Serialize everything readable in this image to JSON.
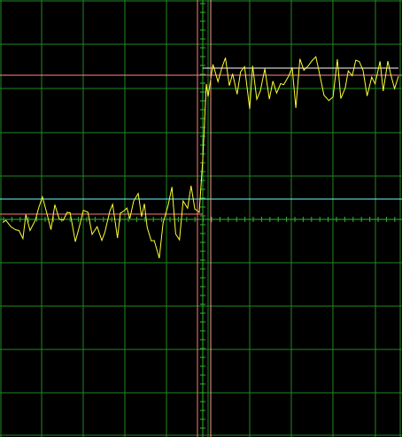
{
  "screen": {
    "background": "#000000",
    "grid_color": "#1f8a1f",
    "center_axis_color": "#2fb52f",
    "grid_divisions": {
      "horizontal": 10,
      "vertical": 10
    }
  },
  "trace": {
    "name": "",
    "color": "#ffff33",
    "step_at_fraction": 0.5,
    "low_level_fraction": 0.51,
    "high_level_fraction": 0.18
  },
  "cursors": {
    "vertical": [
      {
        "color": "#ff7777"
      },
      {
        "color": "#ff9999"
      }
    ],
    "horizontal": [
      {
        "color": "#ff8888"
      },
      {
        "color": "#ffffff"
      },
      {
        "color": "#66ffff"
      },
      {
        "color": "#ff7777"
      }
    ]
  }
}
